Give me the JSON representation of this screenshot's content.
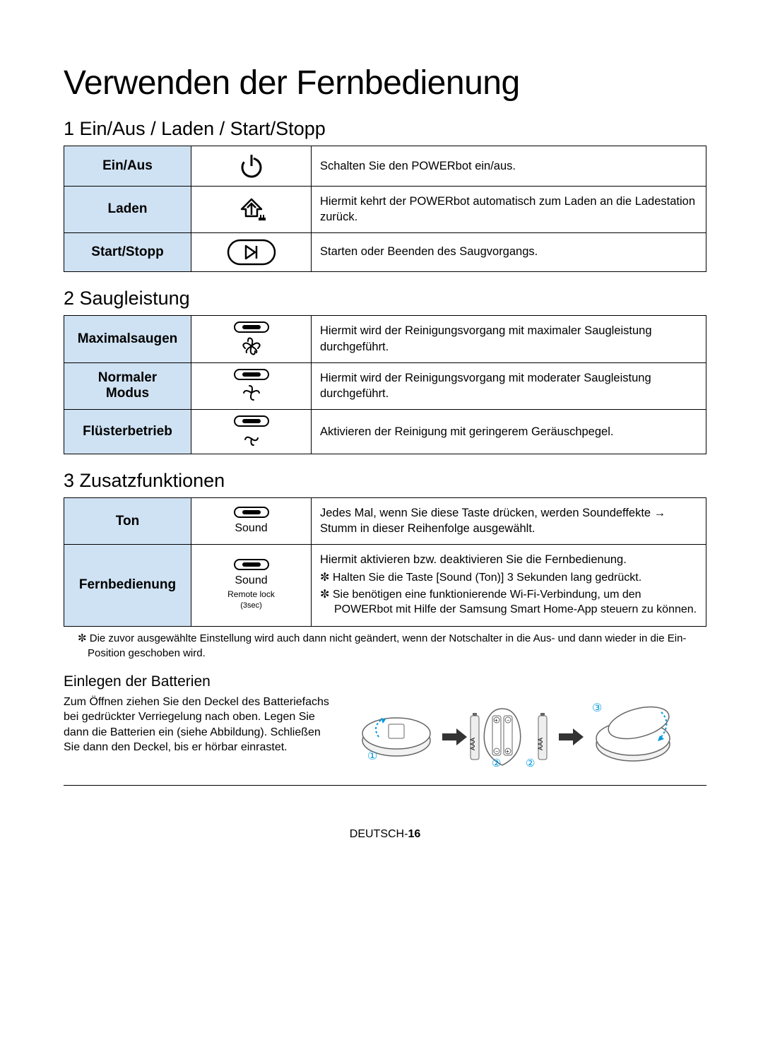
{
  "title": "Verwenden der Fernbedienung",
  "colors": {
    "header_bg": "#cfe2f3",
    "border": "#000000",
    "text": "#000000",
    "accent": "#0099dd"
  },
  "section1": {
    "heading": "1 Ein/Aus / Laden / Start/Stopp",
    "rows": [
      {
        "label": "Ein/Aus",
        "icon": "power",
        "desc": "Schalten Sie den POWERbot ein/aus."
      },
      {
        "label": "Laden",
        "icon": "home-charge",
        "desc": "Hiermit kehrt der POWERbot automatisch zum Laden an die Ladestation zurück."
      },
      {
        "label": "Start/Stopp",
        "icon": "play-button",
        "desc": "Starten oder Beenden des Saugvorgangs."
      }
    ]
  },
  "section2": {
    "heading": "2 Saugleistung",
    "rows": [
      {
        "label": "Maximalsaugen",
        "icon": "fan-max",
        "desc": "Hiermit wird der Reinigungsvorgang mit maximaler Saugleistung durchgeführt."
      },
      {
        "label": "Normaler Modus",
        "icon": "fan-normal",
        "desc": "Hiermit wird der Reinigungsvorgang mit moderater Saugleistung durchgeführt."
      },
      {
        "label": "Flüsterbetrieb",
        "icon": "fan-quiet",
        "desc": "Aktivieren der Reinigung mit geringerem Geräuschpegel."
      }
    ]
  },
  "section3": {
    "heading": "3 Zusatzfunktionen",
    "rows": [
      {
        "label": "Ton",
        "icon_text": "Sound",
        "desc": "Jedes Mal, wenn Sie diese Taste drücken, werden Soundeffekte → Stumm in dieser Reihenfolge ausgewählt."
      },
      {
        "label": "Fernbedienung",
        "icon_text": "Sound",
        "icon_sub1": "Remote lock",
        "icon_sub2": "(3sec)",
        "desc_intro": "Hiermit aktivieren bzw. deaktivieren Sie die Fernbedienung.",
        "desc_b1": "✼ Halten Sie die Taste [Sound (Ton)] 3 Sekunden lang gedrückt.",
        "desc_b2": "✼ Sie benötigen eine funktionierende Wi-Fi-Verbindung, um den POWERbot mit Hilfe der Samsung Smart Home-App steuern zu können."
      }
    ],
    "note": "✼ Die zuvor ausgewählte Einstellung wird auch dann nicht geändert, wenn der Notschalter in die Aus- und dann wieder in die Ein-Position geschoben wird."
  },
  "battery": {
    "heading": "Einlegen der Batterien",
    "text": "Zum Öffnen ziehen Sie den Deckel des Batteriefachs bei gedrückter Verriegelung nach oben. Legen Sie dann die Batterien ein (siehe Abbildung). Schließen Sie dann den Deckel, bis er hörbar einrastet.",
    "step_labels": [
      "①",
      "②",
      "②",
      "③"
    ],
    "battery_type": "AAA"
  },
  "footer": {
    "lang": "DEUTSCH-",
    "page": "16"
  }
}
